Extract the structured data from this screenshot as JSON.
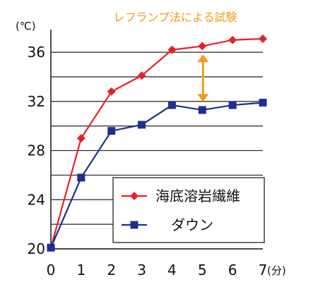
{
  "chart_data": {
    "type": "line",
    "annotation": "レフランプ法による試験",
    "y_unit": "(℃)",
    "x_unit": "(分)",
    "x": [
      0,
      1,
      2,
      3,
      4,
      5,
      6,
      7
    ],
    "xlim": [
      0,
      7
    ],
    "ylim": [
      20,
      37.5
    ],
    "y_ticks": [
      20,
      24,
      28,
      32,
      36
    ],
    "grid": "horizontal",
    "legend_position": "bottom-right",
    "series": [
      {
        "name": "海底溶岩繊維",
        "color": "#e8202a",
        "marker": "diamond",
        "values": [
          20.1,
          29.0,
          32.8,
          34.1,
          36.2,
          36.5,
          37.0,
          37.1
        ]
      },
      {
        "name": "ダウン",
        "color": "#1f2f8f",
        "marker": "square",
        "values": [
          20.1,
          25.8,
          29.6,
          30.1,
          31.7,
          31.3,
          31.7,
          31.9
        ]
      }
    ],
    "difference_arrow": {
      "x": 5,
      "from": 31.4,
      "to": 36.4,
      "color": "#f29a1a"
    }
  }
}
